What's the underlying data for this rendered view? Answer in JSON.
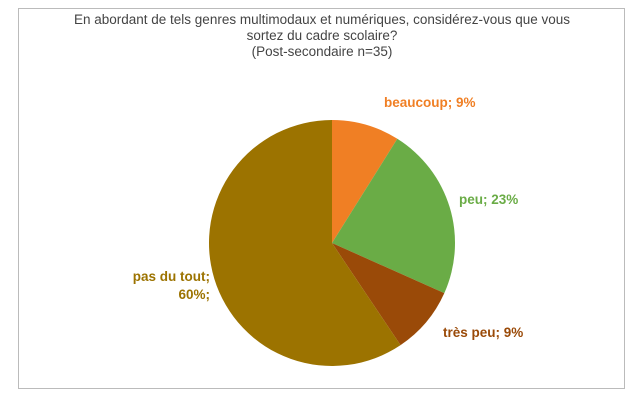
{
  "chart_data": {
    "type": "pie",
    "title": "En abordant de tels genres multimodaux et numériques, considérez-vous que vous sortez du cadre scolaire?",
    "subtitle": "(Post-secondaire n=35)",
    "categories": [
      "beaucoup",
      "peu",
      "très peu",
      "pas du tout"
    ],
    "values": [
      9,
      23,
      9,
      60
    ],
    "value_labels": [
      "beaucoup; 9%",
      "peu; 23%",
      "très peu; 9%",
      "pas du tout; 60%;"
    ],
    "colors": [
      "#f07f24",
      "#6aac46",
      "#9a4a08",
      "#9c7300"
    ]
  }
}
